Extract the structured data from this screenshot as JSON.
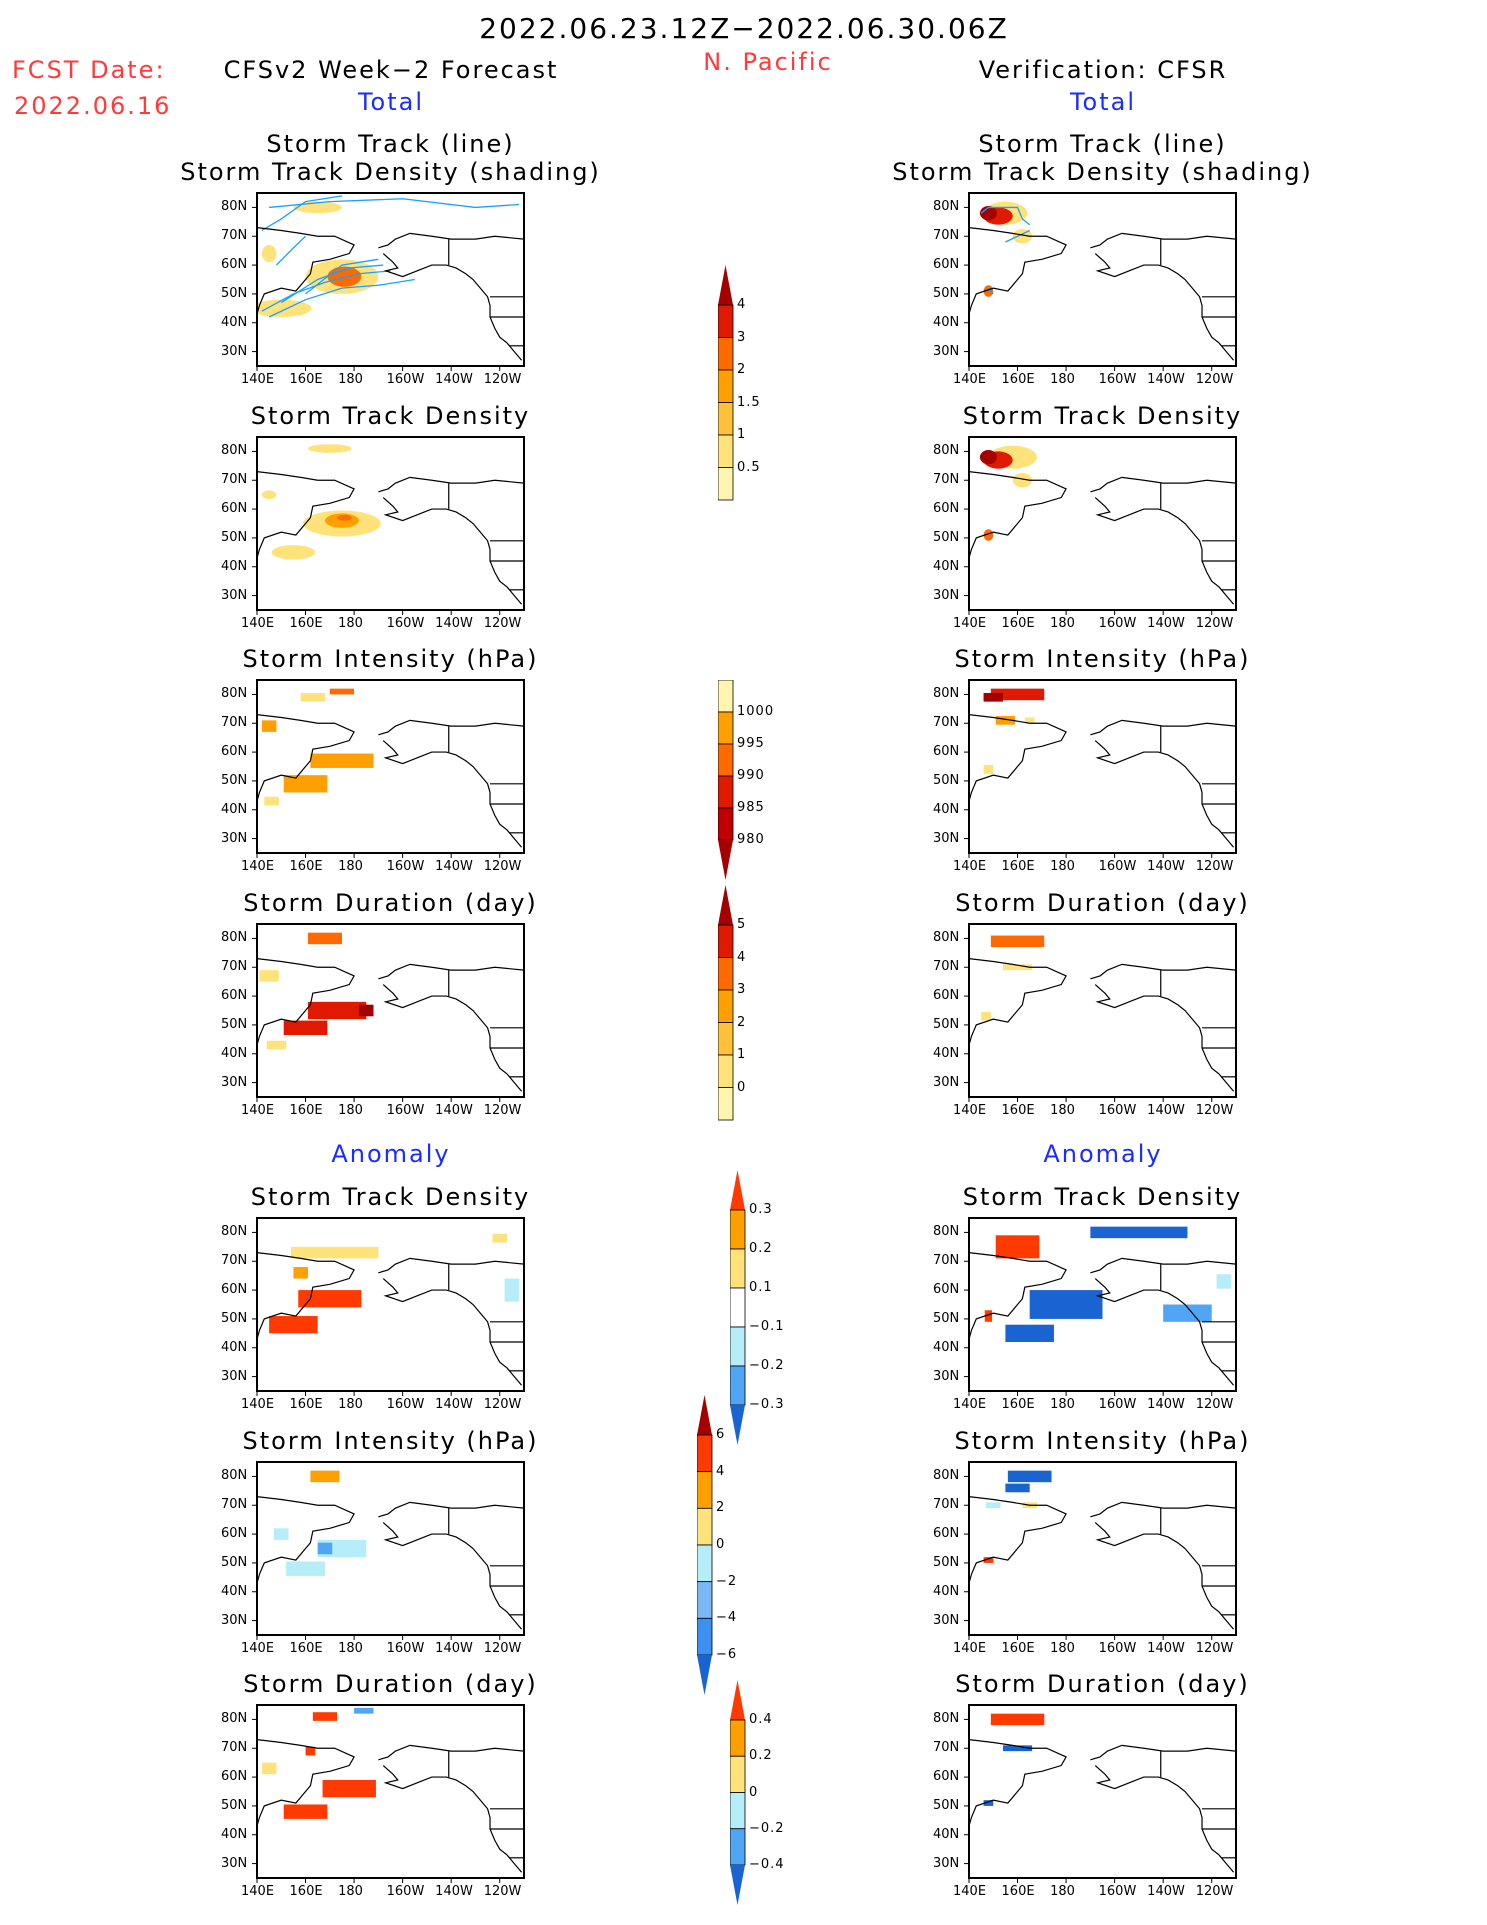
{
  "header": {
    "period": "2022.06.23.12Z−2022.06.30.06Z",
    "fcst_label": "FCST Date:",
    "fcst_date": "2022.06.16",
    "region": "N. Pacific",
    "left_title": "CFSv2 Week−2 Forecast",
    "right_title": "Verification: CFSR",
    "total_label": "Total",
    "anomaly_label": "Anomaly"
  },
  "axes": {
    "lat_ticks": [
      "80N",
      "70N",
      "60N",
      "50N",
      "40N",
      "30N"
    ],
    "lat_values": [
      80,
      70,
      60,
      50,
      40,
      30
    ],
    "lon_ticks": [
      "140E",
      "160E",
      "180",
      "160W",
      "140W",
      "120W"
    ],
    "lon_values": [
      140,
      160,
      180,
      200,
      220,
      240
    ],
    "lon_range": [
      140,
      250
    ],
    "lat_range": [
      25,
      85
    ]
  },
  "panels": {
    "left": [
      {
        "title": [
          "Storm Track (line)",
          "Storm Track Density (shading)"
        ],
        "tracks": true,
        "shading": [
          [
            175,
            56,
            30,
            12,
            1
          ],
          [
            176,
            56,
            14,
            7,
            3
          ],
          [
            150,
            45,
            25,
            6,
            1
          ],
          [
            165,
            80,
            20,
            4,
            1
          ],
          [
            145,
            64,
            6,
            6,
            1
          ]
        ]
      },
      {
        "title": [
          "Storm Track Density"
        ],
        "shading": [
          [
            170,
            81,
            18,
            3,
            1
          ],
          [
            175,
            55,
            32,
            9,
            1
          ],
          [
            175,
            56,
            14,
            5,
            2
          ],
          [
            176,
            57,
            6,
            2,
            3
          ],
          [
            145,
            65,
            6,
            3,
            1
          ],
          [
            155,
            45,
            18,
            5,
            1
          ]
        ]
      },
      {
        "title": [
          "Storm Intensity (hPa)"
        ],
        "shading": [
          [
            163,
            79,
            10,
            3,
            1
          ],
          [
            175,
            81,
            10,
            2,
            3
          ],
          [
            145,
            69,
            6,
            4,
            2
          ],
          [
            175,
            57,
            26,
            5,
            2
          ],
          [
            160,
            49,
            18,
            6,
            2
          ],
          [
            146,
            43,
            6,
            3,
            1
          ]
        ]
      },
      {
        "title": [
          "Storm Duration (day)"
        ],
        "shading": [
          [
            168,
            80,
            14,
            4,
            3
          ],
          [
            145,
            67,
            8,
            4,
            1
          ],
          [
            173,
            55,
            24,
            6,
            4
          ],
          [
            160,
            49,
            18,
            5,
            4
          ],
          [
            185,
            55,
            6,
            4,
            5
          ],
          [
            148,
            43,
            8,
            3,
            1
          ]
        ]
      },
      {
        "title": [
          "Storm Track Density"
        ],
        "anom": true,
        "shading": [
          [
            172,
            73,
            36,
            4,
            1
          ],
          [
            170,
            57,
            26,
            6,
            3
          ],
          [
            155,
            48,
            20,
            6,
            3
          ],
          [
            245,
            60,
            6,
            8,
            -1
          ],
          [
            240,
            78,
            6,
            3,
            1
          ],
          [
            158,
            66,
            6,
            4,
            2
          ]
        ]
      },
      {
        "title": [
          "Storm Intensity (hPa)"
        ],
        "anom": true,
        "shading": [
          [
            168,
            80,
            12,
            4,
            2
          ],
          [
            175,
            55,
            20,
            6,
            -1
          ],
          [
            168,
            55,
            6,
            4,
            -2
          ],
          [
            160,
            48,
            16,
            5,
            -1
          ],
          [
            150,
            60,
            6,
            4,
            -1
          ]
        ]
      },
      {
        "title": [
          "Storm Duration (day)"
        ],
        "anom": true,
        "shading": [
          [
            168,
            81,
            10,
            3,
            3
          ],
          [
            178,
            56,
            22,
            6,
            3
          ],
          [
            160,
            48,
            18,
            5,
            3
          ],
          [
            184,
            83,
            8,
            2,
            -2
          ],
          [
            162,
            69,
            4,
            3,
            3
          ],
          [
            145,
            63,
            6,
            4,
            1
          ]
        ]
      }
    ],
    "right": [
      {
        "title": [
          "Storm Track (line)",
          "Storm Track Density (shading)"
        ],
        "tracks": true,
        "shading": [
          [
            155,
            78,
            18,
            8,
            1
          ],
          [
            152,
            77,
            12,
            6,
            4
          ],
          [
            148,
            78,
            7,
            5,
            5
          ],
          [
            162,
            70,
            8,
            5,
            1
          ],
          [
            148,
            51,
            4,
            4,
            3
          ]
        ]
      },
      {
        "title": [
          "Storm Track Density"
        ],
        "shading": [
          [
            158,
            78,
            20,
            8,
            1
          ],
          [
            152,
            77,
            12,
            6,
            4
          ],
          [
            148,
            78,
            7,
            5,
            5
          ],
          [
            162,
            70,
            8,
            5,
            1
          ],
          [
            148,
            51,
            4,
            4,
            3
          ]
        ]
      },
      {
        "title": [
          "Storm Intensity (hPa)"
        ],
        "shading": [
          [
            160,
            80,
            22,
            4,
            4
          ],
          [
            150,
            79,
            8,
            3,
            5
          ],
          [
            155,
            71,
            8,
            3,
            2
          ],
          [
            165,
            71,
            4,
            2,
            1
          ],
          [
            148,
            54,
            4,
            3,
            1
          ]
        ]
      },
      {
        "title": [
          "Storm Duration (day)"
        ],
        "shading": [
          [
            160,
            79,
            22,
            4,
            3
          ],
          [
            160,
            70,
            12,
            2,
            1
          ],
          [
            147,
            53,
            4,
            3,
            1
          ]
        ]
      },
      {
        "title": [
          "Storm Track Density"
        ],
        "anom": true,
        "shading": [
          [
            210,
            80,
            40,
            4,
            -3
          ],
          [
            160,
            75,
            18,
            8,
            3
          ],
          [
            180,
            55,
            30,
            10,
            -3
          ],
          [
            165,
            45,
            20,
            6,
            -3
          ],
          [
            230,
            52,
            20,
            6,
            -2
          ],
          [
            148,
            51,
            3,
            4,
            3
          ],
          [
            245,
            63,
            6,
            5,
            -1
          ]
        ]
      },
      {
        "title": [
          "Storm Intensity (hPa)"
        ],
        "anom": true,
        "shading": [
          [
            165,
            80,
            18,
            4,
            -3
          ],
          [
            160,
            76,
            10,
            3,
            -3
          ],
          [
            165,
            70,
            6,
            2,
            1
          ],
          [
            150,
            70,
            6,
            2,
            -1
          ],
          [
            148,
            51,
            4,
            2,
            3
          ]
        ]
      },
      {
        "title": [
          "Storm Duration (day)"
        ],
        "anom": true,
        "shading": [
          [
            160,
            80,
            22,
            4,
            3
          ],
          [
            160,
            70,
            12,
            2,
            -3
          ],
          [
            148,
            51,
            4,
            2,
            -3
          ]
        ]
      }
    ]
  },
  "colorbars": [
    {
      "name": "density",
      "labels": [
        "4",
        "3",
        "2",
        "1.5",
        "1",
        "0.5"
      ],
      "colors": [
        "#a40000",
        "#e01a00",
        "#ff6a00",
        "#ffa000",
        "#ffc13a",
        "#ffe37a",
        "#fff5b0"
      ],
      "tip": "top"
    },
    {
      "name": "intensity",
      "labels": [
        "1000",
        "995",
        "990",
        "985",
        "980"
      ],
      "colors": [
        "#fff5b0",
        "#ffa000",
        "#ff6a00",
        "#e01a00",
        "#c00000",
        "#a40000"
      ],
      "tip": "bottom"
    },
    {
      "name": "duration",
      "labels": [
        "5",
        "4",
        "3",
        "2",
        "1",
        "0"
      ],
      "colors": [
        "#a40000",
        "#e01a00",
        "#ff6a00",
        "#ffa000",
        "#ffc13a",
        "#ffe37a",
        "#fff5b0"
      ],
      "tip": "top"
    },
    {
      "name": "density-anomaly",
      "labels": [
        "0.3",
        "0.2",
        "0.1",
        "−0.1",
        "−0.2",
        "−0.3"
      ],
      "colors": [
        "#ff3a00",
        "#ffa000",
        "#ffe37a",
        "#ffffff",
        "#b5eef8",
        "#50a5f5",
        "#1a64d2"
      ],
      "tip": "both"
    },
    {
      "name": "intensity-anomaly",
      "labels": [
        "6",
        "4",
        "2",
        "0",
        "−2",
        "−4",
        "−6"
      ],
      "colors": [
        "#a40000",
        "#ff3a00",
        "#ffa000",
        "#ffe37a",
        "#b5eef8",
        "#7ab8f8",
        "#3d90f0",
        "#1a64d2"
      ],
      "tip": "both"
    },
    {
      "name": "duration-anomaly",
      "labels": [
        "0.4",
        "0.2",
        "0",
        "−0.2",
        "−0.4"
      ],
      "colors": [
        "#ff3a00",
        "#ffa000",
        "#ffe37a",
        "#b5eef8",
        "#50a5f5",
        "#1a64d2"
      ],
      "tip": "both"
    }
  ],
  "colors": {
    "track_line": "#18a0ff",
    "forecast_text": "#ff3a3a",
    "subtitle_text": "#1a2cff"
  }
}
